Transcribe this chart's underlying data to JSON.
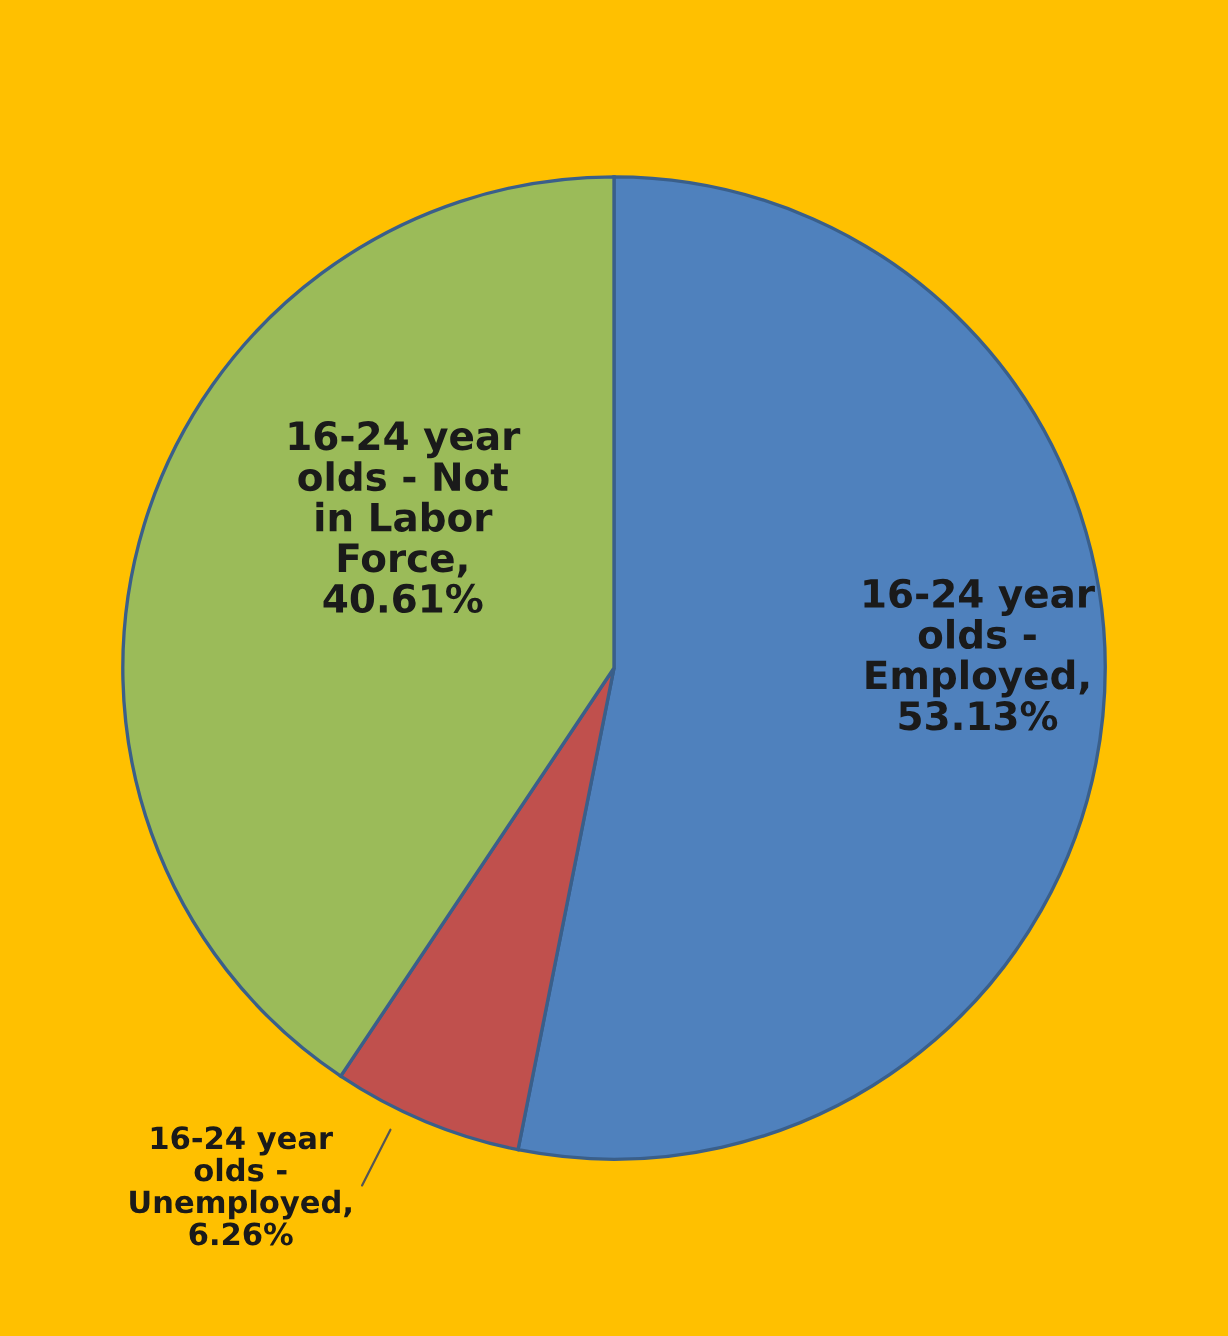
{
  "chart_data": {
    "type": "pie",
    "categories": [
      "16-24 year olds - Employed",
      "16-24 year olds - Unemployed",
      "16-24 year olds - Not in Labor Force"
    ],
    "values": [
      53.13,
      6.26,
      40.61
    ],
    "value_labels": [
      ", 53.13%",
      ", 6.26%",
      ", 40.61%"
    ],
    "colors": [
      "#4f81bd",
      "#c0504d",
      "#9bbb59"
    ],
    "legend": false
  }
}
